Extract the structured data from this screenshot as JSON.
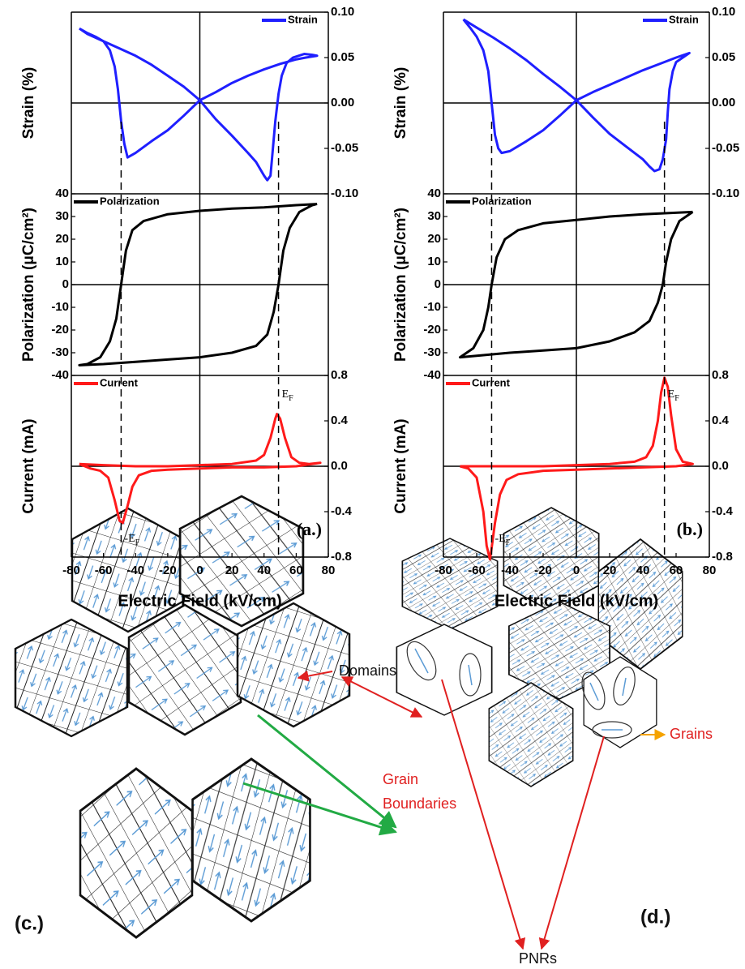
{
  "chart_data": [
    {
      "type": "stacked-line",
      "xlabel": "Electric Field (kV/cm)",
      "xlim": [
        -80,
        80
      ],
      "xticks": [
        -80,
        -60,
        -40,
        -20,
        0,
        20,
        40,
        60,
        80
      ],
      "panel_label": "(a.)",
      "vlines": [
        -49,
        49
      ],
      "subplots": [
        {
          "ylabel": "Strain (%)",
          "yaxis": "right",
          "ylim": [
            -0.1,
            0.1
          ],
          "zero_line": true,
          "legend": "upper right",
          "yticks": [
            {
              "value": 0.1,
              "label": "0.10"
            },
            0.05,
            {
              "value": 0,
              "label": "0.00"
            },
            -0.05,
            {
              "value": -0.1,
              "label": "-0.10"
            }
          ],
          "series": [
            {
              "name": "Strain",
              "color": "#1f1fff",
              "x": [
                -75,
                -70,
                -65,
                -60,
                -56,
                -53,
                -51,
                -49,
                -47,
                -45,
                -40,
                -30,
                -20,
                -10,
                0,
                10,
                20,
                30,
                40,
                50,
                60,
                66,
                73,
                70,
                65,
                58,
                54,
                51,
                49,
                47,
                45,
                44,
                42,
                40,
                35,
                30,
                20,
                10,
                0,
                -10,
                -20,
                -30,
                -40,
                -50,
                -60,
                -70,
                -75
              ],
              "values": [
                0.082,
                0.077,
                0.073,
                0.068,
                0.058,
                0.04,
                0.015,
                -0.02,
                -0.045,
                -0.06,
                -0.055,
                -0.042,
                -0.03,
                -0.014,
                0.003,
                0.012,
                0.022,
                0.03,
                0.037,
                0.043,
                0.048,
                0.05,
                0.052,
                0.053,
                0.054,
                0.05,
                0.044,
                0.03,
                0.01,
                -0.02,
                -0.06,
                -0.08,
                -0.085,
                -0.08,
                -0.065,
                -0.055,
                -0.036,
                -0.018,
                0.003,
                0.018,
                0.03,
                0.042,
                0.052,
                0.06,
                0.068,
                0.076,
                0.082
              ]
            }
          ]
        },
        {
          "ylabel": "Polarization (μC/cm²)",
          "yaxis": "left",
          "ylim": [
            -40,
            40
          ],
          "zero_line": true,
          "legend": "upper left",
          "yticks": [
            40,
            30,
            20,
            10,
            0,
            -10,
            -20,
            -30,
            -40
          ],
          "series": [
            {
              "name": "Polarization",
              "color": "#000000",
              "x": [
                73,
                60,
                40,
                20,
                0,
                -20,
                -35,
                -42,
                -46,
                -49,
                -52,
                -56,
                -62,
                -70,
                -75,
                -60,
                -40,
                -20,
                0,
                20,
                35,
                42,
                46,
                49,
                52,
                56,
                62,
                70,
                73
              ],
              "values": [
                35.5,
                35,
                34,
                33.5,
                32.5,
                31,
                28,
                24,
                15,
                0,
                -15,
                -25,
                -32,
                -35,
                -35.5,
                -35,
                -34,
                -33,
                -32,
                -30,
                -27,
                -22,
                -12,
                0,
                15,
                25,
                32,
                35,
                35.5
              ]
            }
          ]
        },
        {
          "ylabel": "Current (mA)",
          "yaxis": "right",
          "ylim": [
            -0.8,
            0.8
          ],
          "zero_line": true,
          "legend": "upper left",
          "yticks": [
            0.8,
            0.4,
            {
              "value": 0,
              "label": "0.0"
            },
            -0.4,
            -0.8
          ],
          "annotations": [
            {
              "text": "-E",
              "subscript": "F"
            },
            {
              "text": "E",
              "subscript": "F"
            }
          ],
          "series": [
            {
              "name": "Current",
              "color": "#ff1a1a",
              "x": [
                -75,
                -60,
                -40,
                -20,
                0,
                20,
                35,
                40,
                44,
                47,
                48,
                50,
                53,
                57,
                62,
                68,
                75,
                60,
                40,
                20,
                0,
                -20,
                -30,
                -38,
                -42,
                -45,
                -48,
                -50,
                -53,
                -57,
                -62,
                -68,
                -75
              ],
              "values": [
                0.02,
                0.01,
                0,
                0,
                0.01,
                0.02,
                0.05,
                0.1,
                0.25,
                0.42,
                0.46,
                0.42,
                0.25,
                0.08,
                0.03,
                0.02,
                0.03,
                0,
                -0.01,
                -0.01,
                -0.02,
                -0.03,
                -0.04,
                -0.08,
                -0.18,
                -0.35,
                -0.5,
                -0.48,
                -0.3,
                -0.1,
                -0.04,
                -0.02,
                0.02
              ]
            }
          ]
        }
      ]
    },
    {
      "type": "stacked-line",
      "xlabel": "Electric Field (kV/cm)",
      "xlim": [
        -80,
        80
      ],
      "xticks": [
        -80,
        -60,
        -40,
        -20,
        0,
        20,
        40,
        60,
        80
      ],
      "panel_label": "(b.)",
      "vlines": [
        -51,
        53
      ],
      "subplots": [
        {
          "ylabel": "Strain (%)",
          "yaxis": "right",
          "ylim": [
            -0.1,
            0.1
          ],
          "zero_line": true,
          "legend": "upper right",
          "yticks": [
            {
              "value": 0.1,
              "label": "0.10"
            },
            0.05,
            {
              "value": 0,
              "label": "0.00"
            },
            -0.05,
            {
              "value": -0.1,
              "label": "-0.10"
            }
          ],
          "series": [
            {
              "name": "Strain",
              "color": "#1f1fff",
              "x": [
                -68,
                -64,
                -60,
                -56,
                -53,
                -51,
                -49,
                -47,
                -45,
                -40,
                -30,
                -20,
                -10,
                0,
                10,
                20,
                30,
                40,
                50,
                60,
                68,
                64,
                60,
                58,
                56,
                55,
                54,
                52,
                50,
                47,
                44,
                40,
                30,
                20,
                10,
                0,
                -10,
                -20,
                -30,
                -40,
                -50,
                -60,
                -68
              ],
              "values": [
                0.092,
                0.083,
                0.073,
                0.058,
                0.035,
                0,
                -0.035,
                -0.05,
                -0.055,
                -0.053,
                -0.042,
                -0.03,
                -0.014,
                0.003,
                0.012,
                0.02,
                0.028,
                0.036,
                0.043,
                0.05,
                0.055,
                0.05,
                0.045,
                0.035,
                0.015,
                -0.01,
                -0.04,
                -0.062,
                -0.073,
                -0.075,
                -0.07,
                -0.062,
                -0.048,
                -0.034,
                -0.016,
                0.003,
                0.018,
                0.032,
                0.047,
                0.06,
                0.072,
                0.083,
                0.092
              ]
            }
          ]
        },
        {
          "ylabel": "Polarization (μC/cm²)",
          "yaxis": "left",
          "ylim": [
            -40,
            40
          ],
          "zero_line": true,
          "legend": "upper left",
          "yticks": [
            40,
            30,
            20,
            10,
            0,
            -10,
            -20,
            -30,
            -40
          ],
          "series": [
            {
              "name": "Polarization",
              "color": "#000000",
              "x": [
                70,
                40,
                20,
                0,
                -20,
                -35,
                -43,
                -48,
                -51,
                -53,
                -56,
                -62,
                -70,
                -40,
                -20,
                0,
                20,
                35,
                44,
                49,
                52,
                54,
                57,
                62,
                70
              ],
              "values": [
                32,
                31,
                30,
                28.5,
                27,
                24,
                20,
                12,
                0,
                -10,
                -20,
                -28,
                -32,
                -30,
                -29,
                -28,
                -25,
                -21,
                -16,
                -8,
                0,
                10,
                20,
                28,
                32
              ]
            }
          ]
        },
        {
          "ylabel": "Current (mA)",
          "yaxis": "right",
          "ylim": [
            -0.8,
            0.8
          ],
          "zero_line": true,
          "legend": "upper left",
          "yticks": [
            0.8,
            0.4,
            {
              "value": 0,
              "label": "0.0"
            },
            -0.4,
            -0.8
          ],
          "annotations": [
            {
              "text": "-E",
              "subscript": "F"
            },
            {
              "text": "E",
              "subscript": "F"
            }
          ],
          "series": [
            {
              "name": "Current",
              "color": "#ff1a1a",
              "x": [
                -70,
                -40,
                -20,
                0,
                20,
                35,
                42,
                46,
                49,
                51,
                53,
                55,
                57,
                60,
                64,
                70,
                60,
                40,
                20,
                0,
                -20,
                -35,
                -42,
                -46,
                -49,
                -51,
                -52,
                -54,
                -56,
                -60,
                -65,
                -70
              ],
              "values": [
                0,
                0,
                0,
                0.01,
                0.02,
                0.04,
                0.08,
                0.18,
                0.4,
                0.65,
                0.78,
                0.7,
                0.45,
                0.15,
                0.04,
                0.02,
                0,
                -0.01,
                -0.02,
                -0.03,
                -0.04,
                -0.07,
                -0.12,
                -0.25,
                -0.5,
                -0.72,
                -0.82,
                -0.7,
                -0.4,
                -0.1,
                -0.02,
                0
              ]
            }
          ]
        }
      ]
    }
  ],
  "diagrams": {
    "c": {
      "panel_label": "(c.)",
      "annotations": [
        "Domains",
        "Grain",
        "Boundaries"
      ]
    },
    "d": {
      "panel_label": "(d.)",
      "annotations": [
        "Grains",
        "PNRs"
      ]
    }
  }
}
